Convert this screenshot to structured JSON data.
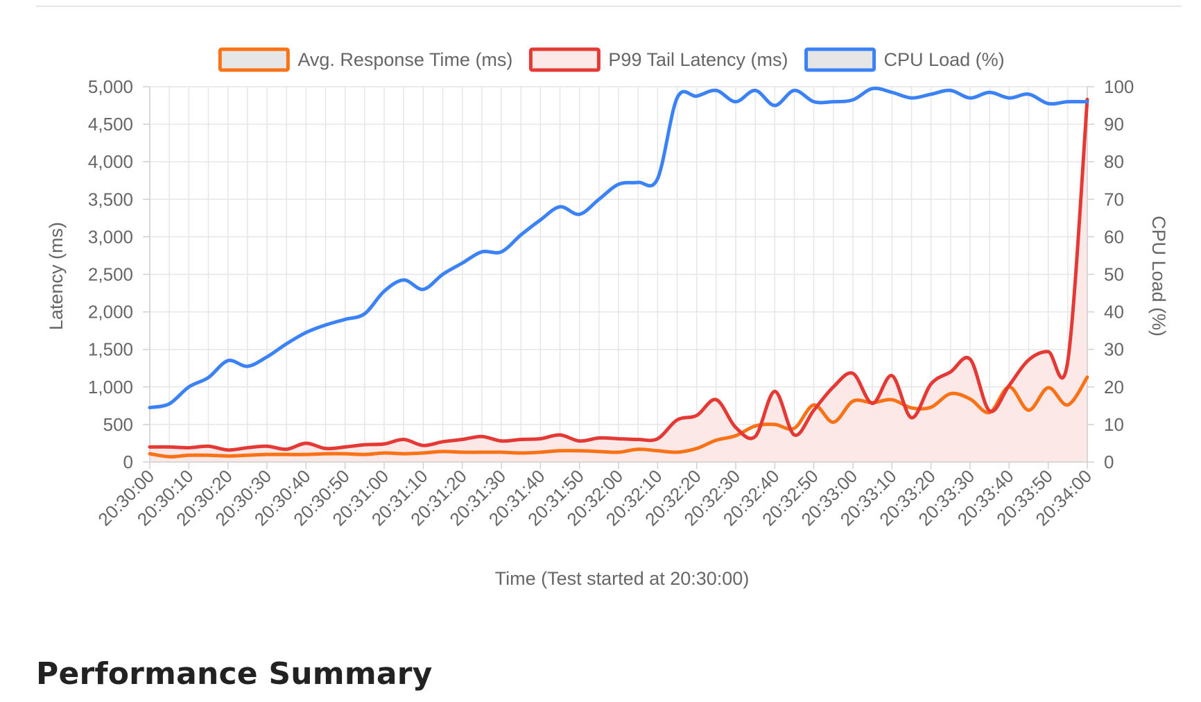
{
  "section_heading": "Performance Summary",
  "chart_data": {
    "type": "line",
    "title": "",
    "xlabel": "Time (Test started at 20:30:00)",
    "ylabel_left": "Latency (ms)",
    "ylabel_right": "CPU Load (%)",
    "ylim_left": [
      0,
      5000
    ],
    "ylim_right": [
      0,
      100
    ],
    "yticks_left": [
      "0",
      "500",
      "1,000",
      "1,500",
      "2,000",
      "2,500",
      "3,000",
      "3,500",
      "4,000",
      "4,500",
      "5,000"
    ],
    "yticks_right": [
      "0",
      "10",
      "20",
      "30",
      "40",
      "50",
      "60",
      "70",
      "80",
      "90",
      "100"
    ],
    "grid": true,
    "legend_position": "top-center",
    "x_ticks": [
      "20:30:00",
      "20:30:10",
      "20:30:20",
      "20:30:30",
      "20:30:40",
      "20:30:50",
      "20:31:00",
      "20:31:10",
      "20:31:20",
      "20:31:30",
      "20:31:40",
      "20:31:50",
      "20:32:00",
      "20:32:10",
      "20:32:20",
      "20:32:30",
      "20:32:40",
      "20:32:50",
      "20:33:00",
      "20:33:10",
      "20:33:20",
      "20:33:30",
      "20:33:40",
      "20:33:50",
      "20:34:00"
    ],
    "x_values_sec": [
      0,
      5,
      10,
      15,
      20,
      25,
      30,
      35,
      40,
      45,
      50,
      55,
      60,
      65,
      70,
      75,
      80,
      85,
      90,
      95,
      100,
      105,
      110,
      115,
      120,
      125,
      130,
      135,
      140,
      145,
      150,
      155,
      160,
      165,
      170,
      175,
      180,
      185,
      190,
      195,
      200,
      205,
      210,
      215,
      220,
      225,
      230,
      235,
      240
    ],
    "series": [
      {
        "name": "Avg. Response Time (ms)",
        "axis": "left",
        "color": "#f97316",
        "fill": false,
        "values": [
          110,
          70,
          90,
          90,
          80,
          90,
          100,
          100,
          100,
          110,
          110,
          100,
          120,
          110,
          120,
          140,
          130,
          130,
          130,
          120,
          130,
          150,
          150,
          140,
          130,
          170,
          150,
          130,
          180,
          290,
          350,
          480,
          500,
          450,
          760,
          530,
          810,
          790,
          830,
          720,
          730,
          910,
          840,
          660,
          1000,
          690,
          990,
          760,
          1130
        ]
      },
      {
        "name": "P99 Tail Latency (ms)",
        "axis": "left",
        "color": "#e53935",
        "fill": true,
        "fill_color": "#fde8e8",
        "values": [
          200,
          200,
          190,
          210,
          160,
          190,
          210,
          170,
          250,
          180,
          200,
          230,
          240,
          300,
          220,
          270,
          300,
          340,
          280,
          300,
          310,
          360,
          280,
          320,
          310,
          300,
          310,
          560,
          620,
          830,
          460,
          340,
          940,
          360,
          690,
          1000,
          1180,
          780,
          1150,
          590,
          1040,
          1200,
          1370,
          680,
          1020,
          1360,
          1470,
          1340,
          4830
        ]
      },
      {
        "name": "CPU Load (%)",
        "axis": "right",
        "color": "#3b82f6",
        "fill": false,
        "values": [
          14.5,
          15.5,
          20,
          22.5,
          27,
          25.5,
          28,
          31.5,
          34.5,
          36.5,
          38,
          39.5,
          45.5,
          48.5,
          46,
          50,
          53,
          56,
          56,
          60.5,
          64.5,
          68,
          66,
          70,
          74,
          74.5,
          75.5,
          97,
          97.5,
          99,
          96,
          99,
          95,
          99,
          96,
          96,
          96.5,
          99.5,
          98.5,
          97,
          98,
          99,
          97,
          98.5,
          97,
          98,
          95.5,
          96,
          96
        ]
      }
    ]
  }
}
